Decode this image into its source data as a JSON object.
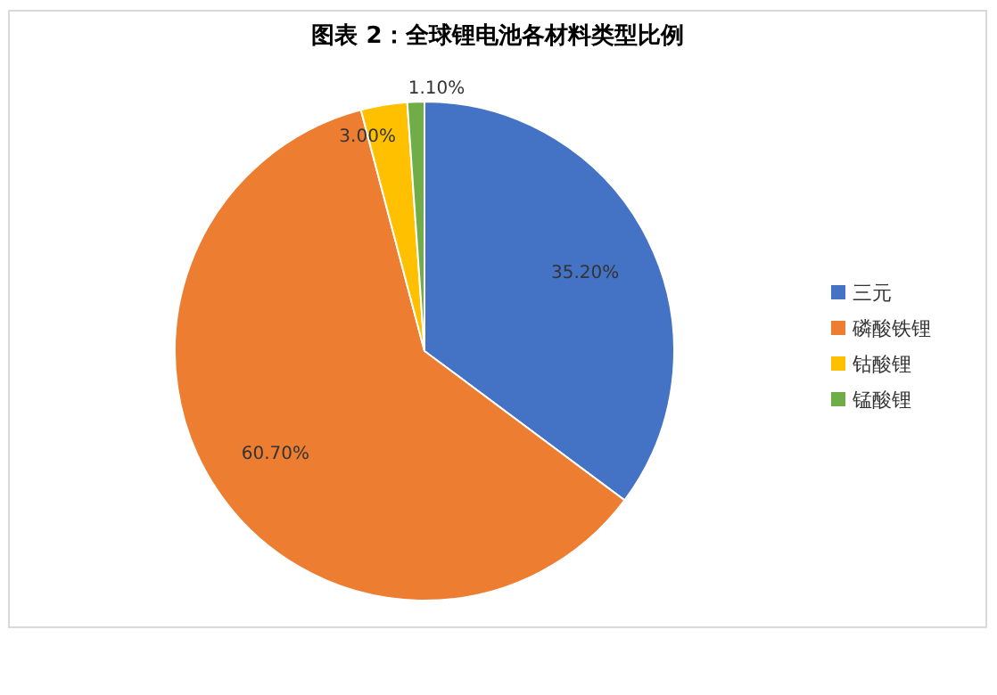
{
  "chart_data": {
    "type": "pie",
    "title": "图表 2：全球锂电池各材料类型比例",
    "categories": [
      "三元",
      "磷酸铁锂",
      "钴酸锂",
      "锰酸锂"
    ],
    "values": [
      35.2,
      60.7,
      3.0,
      1.1
    ],
    "value_labels": [
      "35.20%",
      "60.70%",
      "3.00%",
      "1.10%"
    ],
    "colors": [
      "#4472c4",
      "#ed7d31",
      "#ffc000",
      "#70ad47"
    ],
    "legend": "right"
  }
}
